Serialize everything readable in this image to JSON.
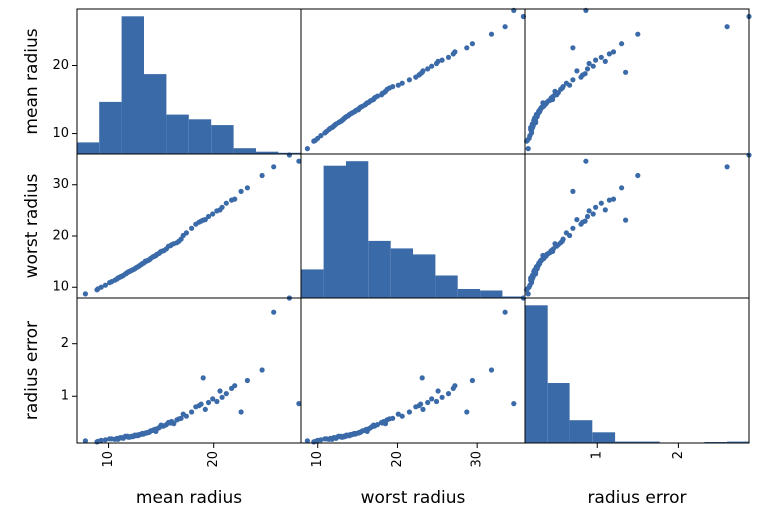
{
  "chart_data": {
    "type": "scatter",
    "variables": [
      "mean radius",
      "worst radius",
      "radius error"
    ],
    "axis_labels": {
      "x": [
        "mean radius",
        "worst radius",
        "radius error"
      ],
      "y": [
        "mean radius",
        "worst radius",
        "radius error"
      ]
    },
    "ranges": [
      [
        7.0,
        28.3
      ],
      [
        7.9,
        36.0
      ],
      [
        0.11,
        2.87
      ]
    ],
    "x_ticks": [
      [
        10,
        20
      ],
      [
        10,
        20,
        30
      ],
      [
        1,
        2
      ]
    ],
    "y_ticks": [
      [
        10,
        20
      ],
      [
        10,
        20,
        30
      ],
      [
        1,
        2
      ]
    ],
    "histograms": [
      {
        "variable": "mean radius",
        "bin_edges": [
          6.98,
          9.11,
          11.24,
          13.37,
          15.5,
          17.63,
          19.76,
          21.89,
          24.02,
          26.15,
          28.28
        ],
        "counts": [
          10,
          45,
          119,
          69,
          34,
          30,
          25,
          5,
          2,
          1
        ]
      },
      {
        "variable": "worst radius",
        "bin_edges": [
          7.93,
          10.73,
          13.54,
          16.34,
          19.15,
          21.95,
          24.76,
          27.56,
          30.37,
          33.17,
          35.98
        ],
        "counts": [
          19,
          88,
          91,
          38,
          33,
          29,
          15,
          6,
          5,
          1
        ]
      },
      {
        "variable": "radius error",
        "bin_edges": [
          0.11,
          0.39,
          0.66,
          0.94,
          1.22,
          1.49,
          1.77,
          2.05,
          2.32,
          2.6,
          2.87
        ],
        "counts": [
          193,
          84,
          32,
          15,
          2,
          2,
          0,
          0,
          1,
          2
        ]
      }
    ],
    "series": [
      {
        "name": "mean radius",
        "values": [
          13.5,
          12.8,
          7.8,
          11.9,
          13.1,
          11.4,
          19.2,
          10.9,
          14.2,
          20.3,
          11.6,
          13.0,
          14.8,
          9.7,
          12.3,
          16.5,
          11.1,
          20.6,
          13.2,
          14.6,
          8.9,
          12.5,
          15.0,
          17.9,
          10.3,
          18.8,
          12.0,
          15.7,
          14.5,
          11.8,
          13.8,
          22.0,
          10.6,
          16.2,
          19.9,
          12.9,
          23.2,
          14.9,
          9.3,
          13.4,
          11.3,
          17.4,
          15.5,
          21.2,
          12.6,
          24.6,
          16.9,
          13.6,
          10.1,
          18.3,
          12.2,
          11.0,
          25.7,
          14.0,
          19.5,
          12.4,
          13.9,
          15.3,
          10.8,
          16.0,
          27.2,
          14.3,
          21.7,
          11.7,
          17.1,
          13.3,
          20.8,
          12.1,
          15.9,
          18.6,
          9.0,
          22.6,
          14.4,
          11.2,
          16.7,
          13.7,
          28.1,
          12.7,
          19.0,
          15.2
        ]
      },
      {
        "name": "worst radius",
        "values": [
          15.1,
          14.0,
          8.7,
          13.0,
          14.4,
          12.3,
          23.2,
          11.8,
          15.9,
          24.9,
          12.6,
          14.3,
          16.6,
          10.4,
          13.4,
          18.7,
          12.0,
          25.1,
          14.6,
          16.4,
          9.5,
          13.6,
          17.0,
          21.5,
          11.1,
          22.9,
          13.1,
          18.0,
          16.2,
          12.9,
          15.3,
          27.2,
          11.4,
          18.5,
          24.3,
          14.1,
          29.4,
          16.8,
          10.0,
          14.8,
          12.2,
          20.6,
          17.5,
          26.4,
          13.8,
          31.8,
          19.4,
          15.1,
          10.9,
          22.3,
          13.3,
          11.9,
          33.5,
          15.6,
          23.8,
          13.5,
          15.4,
          17.2,
          11.6,
          18.3,
          35.8,
          16.0,
          27.0,
          12.7,
          20.1,
          14.7,
          25.6,
          13.2,
          18.1,
          22.7,
          9.7,
          28.7,
          16.1,
          12.1,
          19.0,
          15.2,
          34.6,
          13.9,
          23.1,
          17.1
        ]
      },
      {
        "name": "radius error",
        "values": [
          0.3,
          0.25,
          0.15,
          0.22,
          0.28,
          0.2,
          0.75,
          0.18,
          0.35,
          0.9,
          0.24,
          0.27,
          0.4,
          0.17,
          0.23,
          0.55,
          0.21,
          1.1,
          0.29,
          0.38,
          0.13,
          0.26,
          0.45,
          0.7,
          0.19,
          0.85,
          0.22,
          0.5,
          0.33,
          0.24,
          0.31,
          1.2,
          0.18,
          0.48,
          0.95,
          0.27,
          1.3,
          0.42,
          0.16,
          0.29,
          0.21,
          0.62,
          0.46,
          1.05,
          0.25,
          1.5,
          0.58,
          0.3,
          0.19,
          0.8,
          0.24,
          0.2,
          2.6,
          0.34,
          0.88,
          0.24,
          0.32,
          0.44,
          0.2,
          0.52,
          2.87,
          0.36,
          1.15,
          0.23,
          0.66,
          0.28,
          0.98,
          0.23,
          0.49,
          0.82,
          0.14,
          0.7,
          0.37,
          0.21,
          0.57,
          0.31,
          0.86,
          0.26,
          1.35,
          0.43
        ]
      }
    ],
    "marker_color": "#3b6aa9",
    "frame_color": "#000000"
  }
}
